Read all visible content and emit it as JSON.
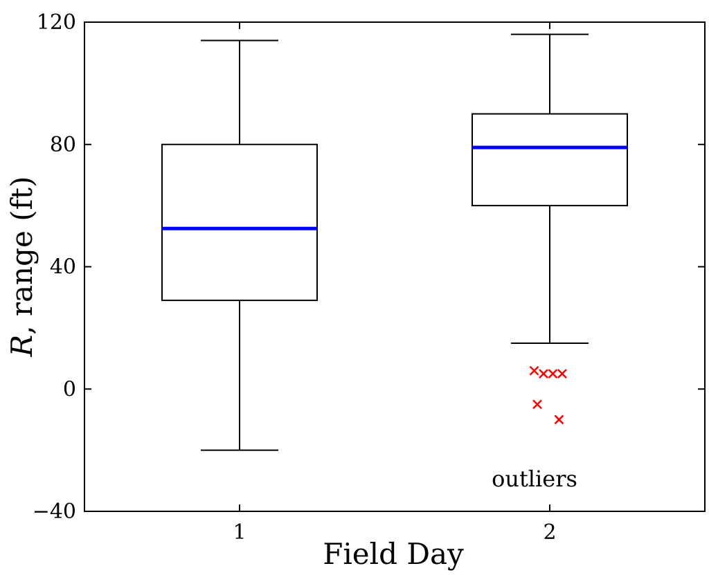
{
  "chart_data": {
    "type": "box",
    "xlabel": "Field Day",
    "ylabel_italic": "R",
    "ylabel_rest": ", range (ft)",
    "ylim": [
      -40,
      120
    ],
    "yticks": [
      -40,
      0,
      40,
      80,
      120
    ],
    "ytick_labels": [
      "−40",
      "0",
      "40",
      "80",
      "120"
    ],
    "categories": [
      "1",
      "2"
    ],
    "boxes": [
      {
        "category": "1",
        "whisker_low": -20,
        "q1": 29,
        "median": 52.5,
        "q3": 80,
        "whisker_high": 114,
        "outliers": []
      },
      {
        "category": "2",
        "whisker_low": 15,
        "q1": 60,
        "median": 79,
        "q3": 90,
        "whisker_high": 116,
        "outliers": [
          {
            "x": 1.95,
            "y": 6
          },
          {
            "x": 1.98,
            "y": 5
          },
          {
            "x": 2.01,
            "y": 5
          },
          {
            "x": 2.04,
            "y": 5
          },
          {
            "x": 1.96,
            "y": -5
          },
          {
            "x": 2.03,
            "y": -10
          }
        ]
      }
    ],
    "annotation": "outliers",
    "colors": {
      "median": "#0000ff",
      "outlier": "#ff0000",
      "box": "#000000"
    }
  }
}
